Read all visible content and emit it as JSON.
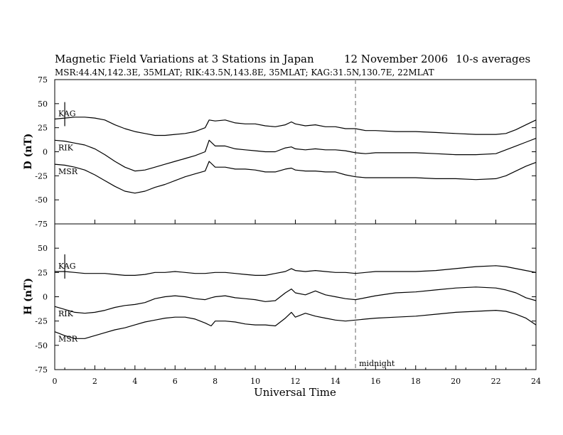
{
  "chart_data": {
    "type": "line",
    "title": "Magnetic Field Variations at 3 Stations in Japan",
    "date": "12 November 2006",
    "averaging": "10-s averages",
    "subtitle": "MSR:44.4N,142.3E, 35MLAT;  RIK:43.5N,143.8E, 35MLAT;  KAG:31.5N,130.7E, 22MLAT",
    "xlabel": "Universal Time",
    "xlim": [
      0,
      24
    ],
    "xticks": [
      "0",
      "2",
      "4",
      "6",
      "8",
      "10",
      "12",
      "14",
      "16",
      "18",
      "20",
      "22",
      "24"
    ],
    "midnight_marker": {
      "x": 15,
      "label": "midnight"
    },
    "panels": [
      {
        "id": "D",
        "ylabel": "D (nT)",
        "ylim": [
          -75,
          75
        ],
        "yticks": [
          "75",
          "50",
          "25",
          "0",
          "-25",
          "-50",
          "-75"
        ],
        "scale_bar_nT": 25,
        "series": [
          {
            "name": "KAG",
            "x": [
              0,
              0.5,
              1,
              1.5,
              2,
              2.5,
              3,
              3.5,
              4,
              4.5,
              5,
              5.5,
              6,
              6.5,
              7,
              7.5,
              7.7,
              8,
              8.5,
              9,
              9.5,
              10,
              10.5,
              11,
              11.5,
              11.8,
              12,
              12.5,
              13,
              13.5,
              14,
              14.5,
              15,
              15.5,
              16,
              17,
              18,
              19,
              20,
              21,
              22,
              22.5,
              23,
              23.5,
              24
            ],
            "y": [
              34,
              35,
              36,
              36,
              35,
              33,
              28,
              24,
              21,
              19,
              17,
              17,
              18,
              19,
              21,
              25,
              33,
              32,
              33,
              30,
              29,
              29,
              27,
              26,
              28,
              31,
              29,
              27,
              28,
              26,
              26,
              24,
              24,
              22,
              22,
              21,
              21,
              20,
              19,
              18,
              18,
              19,
              23,
              28,
              33
            ]
          },
          {
            "name": "RIK",
            "x": [
              0,
              0.5,
              1,
              1.5,
              2,
              2.5,
              3,
              3.5,
              4,
              4.5,
              5,
              5.5,
              6,
              6.5,
              7,
              7.5,
              7.7,
              8,
              8.5,
              9,
              9.5,
              10,
              10.5,
              11,
              11.5,
              11.8,
              12,
              12.5,
              13,
              13.5,
              14,
              14.5,
              15,
              15.5,
              16,
              17,
              18,
              19,
              20,
              21,
              22,
              22.5,
              23,
              23.5,
              24
            ],
            "y": [
              12,
              11,
              9,
              7,
              3,
              -3,
              -10,
              -16,
              -20,
              -19,
              -16,
              -13,
              -10,
              -7,
              -4,
              0,
              12,
              6,
              6,
              3,
              2,
              1,
              0,
              0,
              4,
              5,
              3,
              2,
              3,
              2,
              2,
              1,
              -1,
              -2,
              -1,
              -1,
              -1,
              -2,
              -3,
              -3,
              -2,
              2,
              6,
              10,
              14
            ]
          },
          {
            "name": "MSR",
            "x": [
              0,
              0.5,
              1,
              1.5,
              2,
              2.5,
              3,
              3.5,
              4,
              4.5,
              5,
              5.5,
              6,
              6.5,
              7,
              7.5,
              7.7,
              8,
              8.5,
              9,
              9.5,
              10,
              10.5,
              11,
              11.5,
              11.8,
              12,
              12.5,
              13,
              13.5,
              14,
              14.5,
              15,
              15.5,
              16,
              17,
              18,
              19,
              20,
              21,
              22,
              22.5,
              23,
              23.5,
              24
            ],
            "y": [
              -13,
              -14,
              -16,
              -19,
              -24,
              -30,
              -36,
              -41,
              -43,
              -41,
              -37,
              -34,
              -30,
              -26,
              -23,
              -20,
              -10,
              -16,
              -16,
              -18,
              -18,
              -19,
              -21,
              -21,
              -18,
              -17,
              -19,
              -20,
              -20,
              -21,
              -21,
              -24,
              -26,
              -27,
              -27,
              -27,
              -27,
              -28,
              -28,
              -29,
              -28,
              -25,
              -20,
              -15,
              -11
            ]
          }
        ]
      },
      {
        "id": "H",
        "ylabel": "H (nT)",
        "ylim": [
          -75,
          75
        ],
        "yticks": [
          "50",
          "25",
          "0",
          "-25",
          "-50",
          "-75"
        ],
        "scale_bar_nT": 25,
        "series": [
          {
            "name": "KAG",
            "x": [
              0,
              0.5,
              1,
              1.5,
              2,
              2.5,
              3,
              3.5,
              4,
              4.5,
              5,
              5.5,
              6,
              6.5,
              7,
              7.5,
              8,
              8.5,
              9,
              9.5,
              10,
              10.5,
              11,
              11.5,
              11.8,
              12,
              12.5,
              13,
              13.5,
              14,
              14.5,
              15,
              15.5,
              16,
              17,
              18,
              19,
              20,
              21,
              22,
              22.5,
              23,
              23.5,
              24
            ],
            "y": [
              26,
              26,
              25,
              24,
              24,
              24,
              23,
              22,
              22,
              23,
              25,
              25,
              26,
              25,
              24,
              24,
              25,
              25,
              24,
              23,
              22,
              22,
              24,
              26,
              29,
              27,
              26,
              27,
              26,
              25,
              25,
              24,
              25,
              26,
              26,
              26,
              27,
              29,
              31,
              32,
              31,
              29,
              27,
              25
            ]
          },
          {
            "name": "RIK",
            "x": [
              0,
              0.5,
              1,
              1.5,
              2,
              2.5,
              3,
              3.5,
              4,
              4.5,
              5,
              5.5,
              6,
              6.5,
              7,
              7.5,
              7.8,
              8,
              8.5,
              9,
              9.5,
              10,
              10.5,
              11,
              11.5,
              11.8,
              12,
              12.5,
              13,
              13.5,
              14,
              14.5,
              15,
              15.5,
              16,
              17,
              18,
              19,
              20,
              21,
              22,
              22.5,
              23,
              23.5,
              24
            ],
            "y": [
              -10,
              -13,
              -16,
              -17,
              -16,
              -14,
              -11,
              -9,
              -8,
              -6,
              -2,
              0,
              1,
              0,
              -2,
              -3,
              -1,
              0,
              1,
              -1,
              -2,
              -3,
              -5,
              -4,
              4,
              8,
              4,
              2,
              6,
              2,
              0,
              -2,
              -3,
              -1,
              1,
              4,
              5,
              7,
              9,
              10,
              9,
              7,
              4,
              -1,
              -4
            ]
          },
          {
            "name": "MSR",
            "x": [
              0,
              0.5,
              1,
              1.5,
              2,
              2.5,
              3,
              3.5,
              4,
              4.5,
              5,
              5.5,
              6,
              6.5,
              7,
              7.5,
              7.8,
              8,
              8.5,
              9,
              9.5,
              10,
              10.5,
              11,
              11.5,
              11.8,
              12,
              12.5,
              13,
              13.5,
              14,
              14.5,
              15,
              15.5,
              16,
              17,
              18,
              19,
              20,
              21,
              22,
              22.5,
              23,
              23.5,
              24
            ],
            "y": [
              -36,
              -40,
              -43,
              -43,
              -40,
              -37,
              -34,
              -32,
              -29,
              -26,
              -24,
              -22,
              -21,
              -21,
              -23,
              -27,
              -30,
              -25,
              -25,
              -26,
              -28,
              -29,
              -29,
              -30,
              -22,
              -16,
              -21,
              -17,
              -20,
              -22,
              -24,
              -25,
              -24,
              -23,
              -22,
              -21,
              -20,
              -18,
              -16,
              -15,
              -14,
              -15,
              -18,
              -22,
              -29
            ]
          }
        ]
      }
    ]
  }
}
